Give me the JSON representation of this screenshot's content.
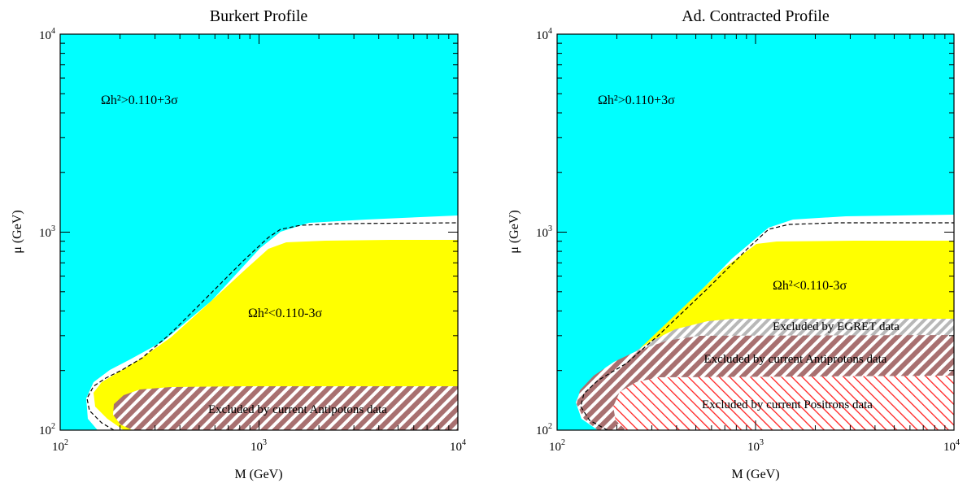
{
  "chart_data": [
    {
      "type": "area",
      "title": "Burkert Profile",
      "xlabel": "M (GeV)",
      "ylabel": "μ (GeV)",
      "x_scale": "log",
      "y_scale": "log",
      "xlim": [
        100,
        10000
      ],
      "ylim": [
        100,
        10000
      ],
      "tick_labels": [
        {
          "base": "10",
          "exp": "2",
          "value": 100
        },
        {
          "base": "10",
          "exp": "3",
          "value": 1000
        },
        {
          "base": "10",
          "exp": "4",
          "value": 10000
        }
      ],
      "colors": {
        "overabundant": "#00ffff",
        "underabundant": "#ffff00",
        "allowed": "#ffffff",
        "antiproton_hatch": "#a87070",
        "positron_hatch": "#ff2222",
        "egret_hatch": "#b0b0b0"
      },
      "regions": [
        {
          "label": "Ωh²>0.110+3σ",
          "label_at": {
            "x": 250,
            "y": 4500
          }
        },
        {
          "label": "Ωh²<0.110-3σ",
          "label_at": {
            "x": 560,
            "y": 370
          },
          "boundary": [
            [
              120,
              100
            ],
            [
              108,
              118
            ],
            [
              118,
              140
            ],
            [
              138,
              158
            ],
            [
              170,
              178
            ],
            [
              220,
              204
            ],
            [
              300,
              245
            ],
            [
              450,
              320
            ],
            [
              650,
              440
            ],
            [
              850,
              560
            ],
            [
              1000,
              700
            ],
            [
              1200,
              860
            ],
            [
              2000,
              890
            ],
            [
              10000,
              900
            ]
          ]
        },
        {
          "label": "Excluded by current Antipotons data",
          "label_at": {
            "x": 1000,
            "y": 120
          },
          "boundary": [
            [
              230,
              100
            ],
            [
              195,
              107
            ],
            [
              178,
              120
            ],
            [
              190,
              138
            ],
            [
              230,
              152
            ],
            [
              300,
              160
            ],
            [
              600,
              165
            ],
            [
              10000,
              165
            ]
          ]
        }
      ],
      "series": [
        {
          "style": "dashed",
          "points": [
            [
              148,
              100
            ],
            [
              120,
              108
            ],
            [
              106,
              125
            ],
            [
              110,
              145
            ],
            [
              135,
              168
            ],
            [
              200,
              200
            ],
            [
              400,
              320
            ],
            [
              1000,
              900
            ],
            [
              1300,
              1040
            ],
            [
              2000,
              1080
            ],
            [
              10000,
              1090
            ]
          ]
        }
      ],
      "white_band_top": [
        [
          200,
          210
        ],
        [
          600,
          520
        ],
        [
          1000,
          920
        ],
        [
          1300,
          1120
        ],
        [
          2000,
          1170
        ],
        [
          10000,
          1200
        ]
      ]
    },
    {
      "type": "area",
      "title": "Ad. Contracted Profile",
      "xlabel": "M (GeV)",
      "ylabel": "μ (GeV)",
      "x_scale": "log",
      "y_scale": "log",
      "xlim": [
        100,
        10000
      ],
      "ylim": [
        100,
        10000
      ],
      "tick_labels": [
        {
          "base": "10",
          "exp": "2",
          "value": 100
        },
        {
          "base": "10",
          "exp": "3",
          "value": 1000
        },
        {
          "base": "10",
          "exp": "4",
          "value": 10000
        }
      ],
      "colors": {
        "overabundant": "#00ffff",
        "underabundant": "#ffff00",
        "allowed": "#ffffff",
        "antiproton_hatch": "#a87070",
        "positron_hatch": "#ff2222",
        "egret_hatch": "#b0b0b0"
      },
      "regions": [
        {
          "label": "Ωh²>0.110+3σ",
          "label_at": {
            "x": 250,
            "y": 4500
          }
        },
        {
          "label": "Ωh²<0.110-3σ",
          "label_at": {
            "x": 2500,
            "y": 560
          },
          "boundary": [
            [
              170,
              100
            ],
            [
              130,
              140
            ],
            [
              300,
              240
            ],
            [
              650,
              420
            ],
            [
              1000,
              560
            ],
            [
              1200,
              860
            ],
            [
              10000,
              900
            ]
          ]
        },
        {
          "label": "Excluded by EGRET data",
          "label_at": {
            "x": 2300,
            "y": 325
          },
          "boundary": [
            [
              400,
              305
            ],
            [
              650,
              350
            ],
            [
              10000,
              350
            ]
          ]
        },
        {
          "label": "Excluded by current Antiprotons data",
          "label_at": {
            "x": 2300,
            "y": 232
          },
          "boundary": [
            [
              170,
              100
            ],
            [
              125,
              135
            ],
            [
              180,
              175
            ],
            [
              400,
              270
            ],
            [
              700,
              300
            ],
            [
              10000,
              300
            ]
          ]
        },
        {
          "label": "Excluded by current Positrons data",
          "label_at": {
            "x": 2300,
            "y": 130
          },
          "boundary": [
            [
              250,
              100
            ],
            [
              210,
              120
            ],
            [
              260,
              160
            ],
            [
              400,
              185
            ],
            [
              10000,
              185
            ]
          ]
        }
      ],
      "series": [
        {
          "style": "dashed",
          "points": [
            [
              180,
              100
            ],
            [
              130,
              120
            ],
            [
              122,
              140
            ],
            [
              170,
              175
            ],
            [
              400,
              325
            ],
            [
              1000,
              900
            ],
            [
              1300,
              1040
            ],
            [
              2000,
              1080
            ],
            [
              10000,
              1090
            ]
          ]
        }
      ],
      "white_band_top": [
        [
          200,
          200
        ],
        [
          600,
          520
        ],
        [
          1000,
          920
        ],
        [
          1300,
          1120
        ],
        [
          2000,
          1170
        ],
        [
          10000,
          1200
        ]
      ]
    }
  ]
}
